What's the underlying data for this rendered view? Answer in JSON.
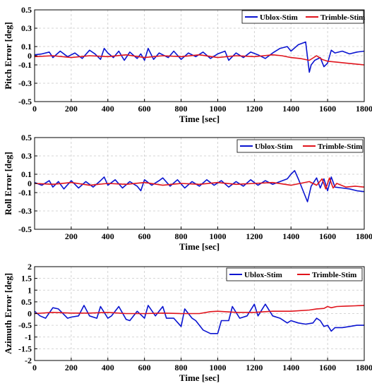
{
  "colors": {
    "ublox": "#0a14d0",
    "trimble": "#e0141c",
    "grid": "#c8c8c8",
    "frame": "#000000",
    "background": "#ffffff"
  },
  "chart_data": [
    {
      "type": "line",
      "title": "",
      "xlabel": "Time [sec]",
      "ylabel": "Pitch Error [deg]",
      "xlim": [
        0,
        1800
      ],
      "ylim": [
        -0.5,
        0.5
      ],
      "xticks": [
        0,
        200,
        400,
        600,
        800,
        1000,
        1200,
        1400,
        1600,
        1800
      ],
      "xtick_labels": [
        "0",
        "200",
        "400",
        "600",
        "800",
        "1000",
        "1200",
        "1400",
        "1600",
        "1800"
      ],
      "yticks": [
        0.5,
        0.3,
        0.1,
        0,
        -0.1,
        -0.3,
        -0.5
      ],
      "ytick_labels": [
        "0.5",
        "0.3",
        "0.1",
        "0",
        "-0.1",
        "-0.3",
        "-0.5"
      ],
      "grid": true,
      "legend_position": "top-right",
      "series": [
        {
          "name": "Ublox-Stim",
          "color": "#0a14d0",
          "x": [
            0,
            40,
            80,
            100,
            140,
            180,
            220,
            260,
            300,
            330,
            360,
            380,
            400,
            430,
            460,
            490,
            520,
            560,
            580,
            600,
            620,
            650,
            680,
            700,
            730,
            760,
            800,
            840,
            880,
            920,
            960,
            1000,
            1040,
            1060,
            1100,
            1140,
            1180,
            1220,
            1260,
            1300,
            1340,
            1380,
            1400,
            1440,
            1480,
            1500,
            1510,
            1530,
            1560,
            1580,
            1600,
            1620,
            1640,
            1680,
            1720,
            1760,
            1800
          ],
          "y": [
            0.01,
            0.02,
            0.04,
            -0.02,
            0.05,
            -0.01,
            0.03,
            -0.03,
            0.06,
            0.02,
            -0.04,
            0.08,
            0.03,
            -0.02,
            0.05,
            -0.05,
            0.04,
            -0.03,
            0.02,
            -0.05,
            0.08,
            -0.04,
            0.03,
            0.01,
            -0.02,
            0.05,
            -0.04,
            0.03,
            -0.01,
            0.04,
            -0.03,
            0.02,
            0.05,
            -0.05,
            0.03,
            -0.02,
            0.04,
            0.01,
            -0.03,
            0.03,
            0.08,
            0.1,
            0.05,
            0.12,
            0.15,
            -0.18,
            -0.1,
            -0.05,
            -0.02,
            -0.12,
            -0.08,
            0.06,
            0.03,
            0.05,
            0.02,
            0.04,
            0.05
          ]
        },
        {
          "name": "Trimble-Stim",
          "color": "#e0141c",
          "x": [
            0,
            100,
            200,
            300,
            400,
            500,
            600,
            700,
            800,
            900,
            1000,
            1100,
            1200,
            1300,
            1350,
            1400,
            1450,
            1500,
            1540,
            1570,
            1600,
            1650,
            1700,
            1750,
            1800
          ],
          "y": [
            -0.01,
            0.0,
            -0.02,
            0.0,
            -0.01,
            0.01,
            -0.02,
            0.0,
            -0.01,
            0.01,
            -0.02,
            0.0,
            -0.01,
            0.01,
            0.0,
            -0.02,
            -0.03,
            -0.05,
            0.0,
            -0.04,
            -0.06,
            -0.07,
            -0.08,
            -0.09,
            -0.1
          ]
        }
      ]
    },
    {
      "type": "line",
      "title": "",
      "xlabel": "Time [sec]",
      "ylabel": "Roll Error [deg]",
      "xlim": [
        0,
        1800
      ],
      "ylim": [
        -0.5,
        0.5
      ],
      "xticks": [
        200,
        400,
        600,
        800,
        1000,
        1200,
        1400,
        1600,
        1800
      ],
      "xtick_labels": [
        "200",
        "400",
        "600",
        "800",
        "1000",
        "1200",
        "1400",
        "1600",
        "1800"
      ],
      "yticks": [
        0.5,
        0.3,
        0.1,
        0,
        -0.1,
        -0.3,
        -0.5
      ],
      "ytick_labels": [
        "0.5",
        "0.3",
        "0.1",
        "0",
        "-0.1",
        "-0.3",
        "-0.5"
      ],
      "grid": true,
      "legend_position": "top-right",
      "series": [
        {
          "name": "Ublox-Stim",
          "color": "#0a14d0",
          "x": [
            0,
            40,
            80,
            100,
            130,
            160,
            200,
            240,
            280,
            320,
            360,
            380,
            400,
            440,
            480,
            520,
            560,
            580,
            600,
            640,
            680,
            700,
            740,
            780,
            820,
            860,
            900,
            940,
            980,
            1020,
            1060,
            1100,
            1140,
            1180,
            1220,
            1260,
            1300,
            1340,
            1380,
            1400,
            1420,
            1440,
            1470,
            1490,
            1510,
            1540,
            1560,
            1580,
            1600,
            1620,
            1640,
            1680,
            1720,
            1760,
            1800
          ],
          "y": [
            0.01,
            -0.02,
            0.03,
            -0.04,
            0.02,
            -0.06,
            0.03,
            -0.05,
            0.02,
            -0.04,
            0.03,
            0.07,
            -0.02,
            0.04,
            -0.05,
            0.02,
            -0.03,
            -0.08,
            0.04,
            -0.02,
            0.03,
            0.06,
            -0.03,
            0.04,
            -0.05,
            0.02,
            -0.03,
            0.04,
            -0.02,
            0.03,
            -0.04,
            0.02,
            -0.03,
            0.04,
            -0.02,
            0.03,
            -0.01,
            0.02,
            0.05,
            0.1,
            0.14,
            0.05,
            -0.1,
            -0.2,
            -0.03,
            0.06,
            -0.05,
            0.05,
            -0.08,
            0.07,
            -0.04,
            -0.05,
            -0.06,
            -0.08,
            -0.09
          ]
        },
        {
          "name": "Trimble-Stim",
          "color": "#e0141c",
          "x": [
            0,
            100,
            200,
            300,
            400,
            500,
            600,
            700,
            800,
            900,
            1000,
            1100,
            1200,
            1300,
            1400,
            1450,
            1500,
            1540,
            1570,
            1590,
            1610,
            1630,
            1650,
            1700,
            1750,
            1800
          ],
          "y": [
            0.0,
            -0.01,
            0.01,
            -0.02,
            0.0,
            -0.01,
            0.01,
            -0.02,
            0.0,
            -0.01,
            0.01,
            -0.01,
            0.0,
            0.01,
            -0.02,
            0.0,
            0.02,
            -0.02,
            0.05,
            -0.06,
            0.06,
            -0.05,
            0.0,
            -0.04,
            -0.03,
            -0.04
          ]
        }
      ]
    },
    {
      "type": "line",
      "title": "",
      "xlabel": "Time [sec]",
      "ylabel": "Azimuth Error [deg]",
      "xlim": [
        0,
        1800
      ],
      "ylim": [
        -2,
        2
      ],
      "xticks": [
        0,
        200,
        400,
        600,
        800,
        1000,
        1200,
        1400,
        1600,
        1800
      ],
      "xtick_labels": [
        "0",
        "200",
        "400",
        "600",
        "800",
        "1000",
        "1200",
        "1400",
        "1600",
        "1800"
      ],
      "yticks": [
        2,
        1.5,
        1,
        0.5,
        0,
        -0.5,
        -1,
        -1.5,
        -2
      ],
      "ytick_labels": [
        "2",
        "1.5",
        "1",
        "0.5",
        "0",
        "-0.5",
        "-1",
        "-1.5",
        "-2"
      ],
      "grid": true,
      "legend_position": "top-right",
      "series": [
        {
          "name": "Ublox-Stim",
          "color": "#0a14d0",
          "x": [
            0,
            30,
            60,
            100,
            130,
            180,
            200,
            240,
            270,
            300,
            340,
            360,
            400,
            420,
            460,
            500,
            520,
            560,
            600,
            620,
            660,
            700,
            720,
            760,
            800,
            820,
            860,
            880,
            920,
            960,
            1000,
            1020,
            1060,
            1080,
            1120,
            1160,
            1200,
            1220,
            1260,
            1300,
            1340,
            1380,
            1400,
            1440,
            1480,
            1520,
            1540,
            1560,
            1580,
            1600,
            1620,
            1640,
            1680,
            1720,
            1760,
            1800
          ],
          "y": [
            0.1,
            -0.1,
            -0.2,
            0.25,
            0.2,
            -0.2,
            -0.15,
            -0.1,
            0.35,
            -0.1,
            -0.2,
            0.3,
            -0.2,
            -0.1,
            0.3,
            -0.25,
            -0.3,
            0.1,
            -0.2,
            0.35,
            -0.1,
            0.3,
            -0.2,
            -0.2,
            -0.55,
            0.2,
            -0.2,
            -0.3,
            -0.7,
            -0.85,
            -0.85,
            -0.3,
            -0.3,
            0.3,
            -0.2,
            -0.1,
            0.4,
            -0.1,
            0.4,
            -0.1,
            -0.2,
            -0.4,
            -0.3,
            -0.4,
            -0.45,
            -0.4,
            -0.2,
            -0.3,
            -0.55,
            -0.5,
            -0.75,
            -0.6,
            -0.6,
            -0.55,
            -0.5,
            -0.5
          ]
        },
        {
          "name": "Trimble-Stim",
          "color": "#e0141c",
          "x": [
            0,
            100,
            200,
            300,
            400,
            500,
            600,
            700,
            800,
            900,
            960,
            1000,
            1100,
            1200,
            1300,
            1400,
            1500,
            1540,
            1580,
            1600,
            1620,
            1650,
            1700,
            1750,
            1800
          ],
          "y": [
            0.0,
            0.05,
            0.02,
            0.02,
            0.05,
            0.0,
            0.0,
            0.02,
            0.0,
            0.0,
            0.08,
            0.1,
            0.05,
            0.05,
            0.1,
            0.1,
            0.15,
            0.2,
            0.22,
            0.3,
            0.25,
            0.3,
            0.32,
            0.33,
            0.35
          ]
        }
      ]
    }
  ]
}
